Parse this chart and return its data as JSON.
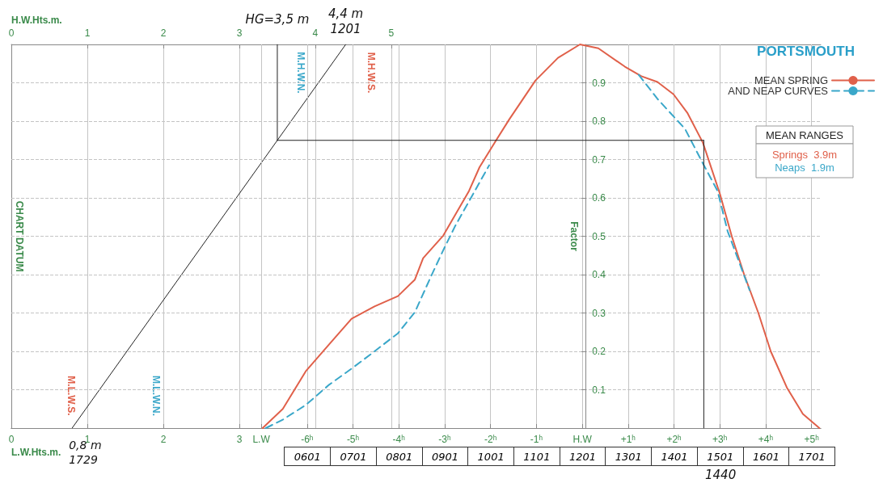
{
  "chart_data": [
    {
      "type": "line",
      "xlabel": "L.W.Hts.m.",
      "x2label": "H.W.Hts.m.",
      "ylabel": "CHART DATUM",
      "xlim": [
        0,
        10.65
      ],
      "xticks": [
        0,
        1,
        2,
        3
      ],
      "x2lim": [
        0,
        10.65
      ],
      "x2ticks": [
        0,
        1,
        2,
        3,
        4,
        5
      ],
      "ylim": [
        0,
        1
      ],
      "tick_labels": "x",
      "grid": "x",
      "marker": "none",
      "series": [
        {
          "color": "#222222",
          "x": [
            0.8,
            4.4
          ],
          "values": [
            0,
            1
          ]
        },
        {
          "color": "#222222",
          "x": [
            3.5,
            3.5
          ],
          "values": [
            0.75,
            1
          ]
        }
      ],
      "annotations": [
        "M.L.W.S.",
        "M.L.W.N.",
        "M.H.W.N.",
        "M.H.W.S.",
        {
          "text": "HG=3,5 m",
          "x": 3.5,
          "y": 1
        },
        {
          "text": "4,4 m\n1201",
          "x": 4.4,
          "y": 1
        },
        {
          "text": "0,8 m\n1729",
          "x": 0.8,
          "y": 0
        }
      ]
    },
    {
      "type": "line",
      "title": "PORTSMOUTH",
      "ylabel": "Factor",
      "xlim": [
        -12.45,
        5.2
      ],
      "ylim": [
        0,
        1
      ],
      "xticks": [
        {
          "value": -7,
          "label": "L.W"
        },
        {
          "value": -6,
          "label": "-6ʰ"
        },
        {
          "value": -5,
          "label": "-5ʰ"
        },
        {
          "value": -4,
          "label": "-4ʰ"
        },
        {
          "value": -3,
          "label": "-3ʰ"
        },
        {
          "value": -2,
          "label": "-2ʰ"
        },
        {
          "value": -1,
          "label": "-1ʰ"
        },
        {
          "value": 0,
          "label": "H.W"
        },
        {
          "value": 1,
          "label": "+1ʰ"
        },
        {
          "value": 2,
          "label": "+2ʰ"
        },
        {
          "value": 3,
          "label": "+3ʰ"
        },
        {
          "value": 4,
          "label": "+4ʰ"
        },
        {
          "value": 5,
          "label": "+5ʰ"
        }
      ],
      "yticks": [
        0.1,
        0.2,
        0.3,
        0.4,
        0.5,
        0.6,
        0.7,
        0.8,
        0.9
      ],
      "grid": true,
      "legend": "top right",
      "marker": "none",
      "series": [
        {
          "name": "MEAN SPRING",
          "color": "#e0604a",
          "line_style": "solid",
          "x": [
            -6.97,
            -6.53,
            -6.03,
            -5.52,
            -5.03,
            -4.53,
            -4.02,
            -3.65,
            -3.47,
            -3.03,
            -2.47,
            -2.24,
            -1.89,
            -1.59,
            -1.02,
            -0.53,
            -0.05,
            0.35,
            0.93,
            1.29,
            1.64,
            1.99,
            2.29,
            2.63,
            3.0,
            3.26,
            3.53,
            3.84,
            4.11,
            4.46,
            4.81,
            5.17
          ],
          "values": [
            0,
            0.05,
            0.148,
            0.218,
            0.285,
            0.317,
            0.344,
            0.387,
            0.443,
            0.502,
            0.618,
            0.68,
            0.748,
            0.805,
            0.906,
            0.965,
            1.0,
            0.99,
            0.942,
            0.917,
            0.902,
            0.87,
            0.822,
            0.744,
            0.611,
            0.5,
            0.4,
            0.3,
            0.2,
            0.106,
            0.037,
            0
          ]
        },
        {
          "name": "AND NEAP CURVES",
          "color": "#3aa7c9",
          "line_style": "dashed",
          "x": [
            -6.9,
            -6.53,
            -6.03,
            -5.52,
            -5.03,
            -4.53,
            -4.02,
            -3.65,
            -3.3,
            -3.03,
            -2.77,
            -2.03,
            0,
            1.23,
            1.64,
            2.24,
            2.63,
            2.95,
            3.17,
            3.65
          ],
          "values": [
            0,
            0.022,
            0.06,
            0.113,
            0.155,
            0.2,
            0.247,
            0.302,
            0.395,
            0.464,
            0.527,
            0.685,
            null,
            0.921,
            0.858,
            0.78,
            0.69,
            0.618,
            0.513,
            0.359
          ]
        },
        {
          "color": "#222222",
          "line_style": "solid",
          "x": [
            -6.65,
            2.65
          ],
          "values": [
            0.75,
            0.75
          ]
        },
        {
          "color": "#222222",
          "line_style": "solid",
          "x": [
            2.65,
            2.65
          ],
          "values": [
            0.75,
            0
          ]
        }
      ],
      "annotations": [
        "MEAN RANGES",
        "Springs  3.9m",
        "Neaps  1.9m",
        "0601",
        "0701",
        "0801",
        "0901",
        "1001",
        "1101",
        "1201",
        "1301",
        "1401",
        "1501",
        "1601",
        "1701",
        "1440"
      ]
    }
  ]
}
